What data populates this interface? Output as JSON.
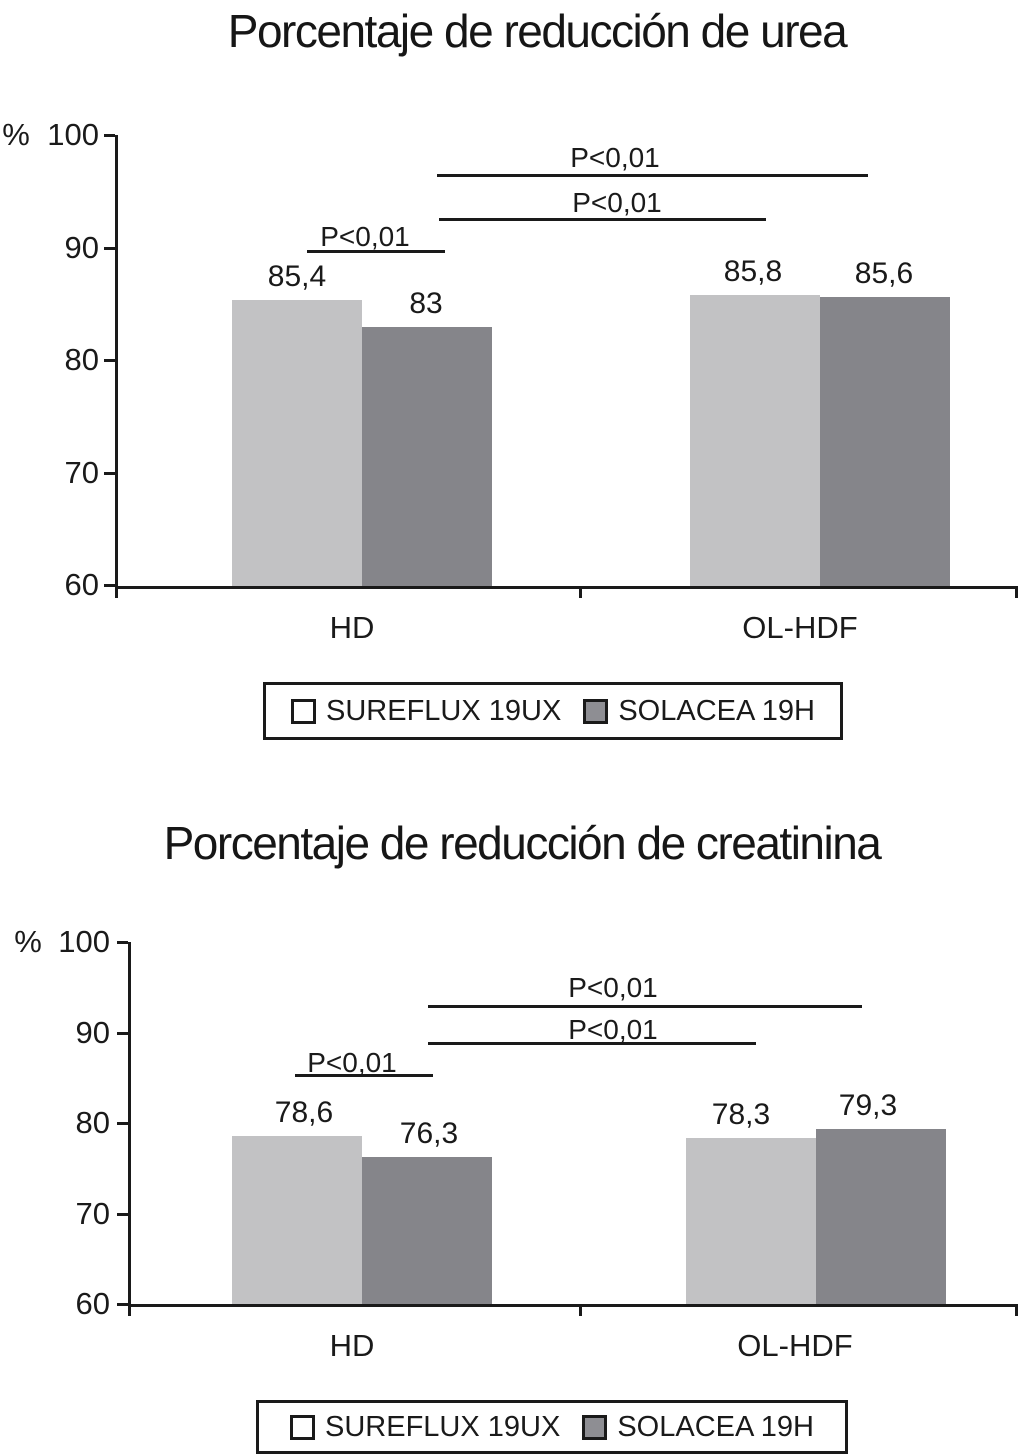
{
  "colors": {
    "background": "#ffffff",
    "text": "#1a1a1a",
    "axis": "#1a1a1a",
    "bar_series": [
      "#c2c2c4",
      "#85858a"
    ],
    "legend_swatches": [
      "#ffffff",
      "#8e8e93"
    ]
  },
  "charts": [
    {
      "title": "Porcentaje de reducción de urea",
      "y_axis_unit": "%",
      "y_tick_labels": [
        "100",
        "90",
        "80",
        "70",
        "60"
      ],
      "category_labels": [
        "HD",
        "OL-HDF"
      ],
      "legend_items": [
        "SUREFLUX 19UX",
        "SOLACEA 19H"
      ],
      "significance": [
        {
          "label": "P<0,01",
          "compares": "HD vs OL-HDF (SOLACEA 19H)"
        },
        {
          "label": "P<0,01",
          "compares": "HD vs OL-HDF (SUREFLUX 19UX)"
        },
        {
          "label": "P<0,01",
          "compares": "HD: SUREFLUX 19UX vs SOLACEA 19H"
        }
      ],
      "chart_data": {
        "type": "bar",
        "title": "Porcentaje de reducción de urea",
        "categories": [
          "HD",
          "OL-HDF"
        ],
        "series": [
          {
            "name": "SUREFLUX 19UX",
            "values": [
              85.4,
              85.8
            ],
            "labels": [
              "85,4",
              "85,8"
            ]
          },
          {
            "name": "SOLACEA 19H",
            "values": [
              83,
              85.6
            ],
            "labels": [
              "83",
              "85,6"
            ]
          }
        ],
        "xlabel": "",
        "ylabel": "%",
        "ylim": [
          60,
          100
        ],
        "y_tick_step": 10,
        "grid": false,
        "legend_position": "bottom",
        "annotations": [
          "P<0,01",
          "P<0,01",
          "P<0,01"
        ]
      }
    },
    {
      "title": "Porcentaje de reducción de creatinina",
      "y_axis_unit": "%",
      "y_tick_labels": [
        "100",
        "90",
        "80",
        "70",
        "60"
      ],
      "category_labels": [
        "HD",
        "OL-HDF"
      ],
      "legend_items": [
        "SUREFLUX 19UX",
        "SOLACEA 19H"
      ],
      "significance": [
        {
          "label": "P<0,01",
          "compares": "HD vs OL-HDF (SOLACEA 19H)"
        },
        {
          "label": "P<0,01",
          "compares": "HD vs OL-HDF (SUREFLUX 19UX)"
        },
        {
          "label": "P<0,01",
          "compares": "HD: SUREFLUX 19UX vs SOLACEA 19H"
        }
      ],
      "chart_data": {
        "type": "bar",
        "title": "Porcentaje de reducción de creatinina",
        "categories": [
          "HD",
          "OL-HDF"
        ],
        "series": [
          {
            "name": "SUREFLUX 19UX",
            "values": [
              78.6,
              78.3
            ],
            "labels": [
              "78,6",
              "78,3"
            ]
          },
          {
            "name": "SOLACEA 19H",
            "values": [
              76.3,
              79.3
            ],
            "labels": [
              "76,3",
              "79,3"
            ]
          }
        ],
        "xlabel": "",
        "ylabel": "%",
        "ylim": [
          60,
          100
        ],
        "y_tick_step": 10,
        "grid": false,
        "legend_position": "bottom",
        "annotations": [
          "P<0,01",
          "P<0,01",
          "P<0,01"
        ]
      }
    }
  ]
}
